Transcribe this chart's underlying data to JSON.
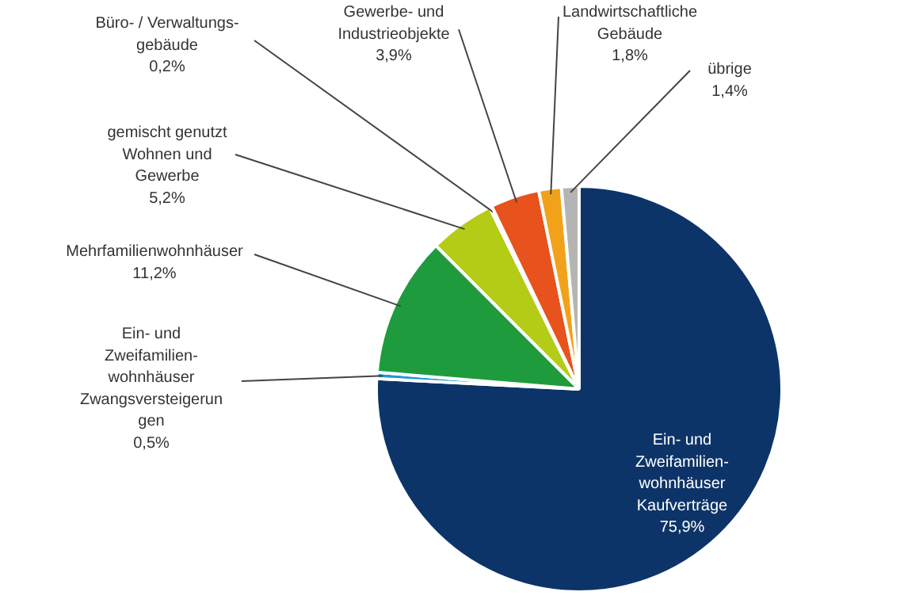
{
  "chart_data": {
    "type": "pie",
    "categories": [
      "Ein- und\nZweifamilien-\nwohnhäuser\nKaufverträge",
      "Ein- und\nZweifamilien-\nwohnhäuser\nZwangsversteigerun\ngen",
      "Mehrfamilienwohnhäuser",
      "gemischt genutzt\nWohnen und\nGewerbe",
      "Büro- / Verwaltungs-\ngebäude",
      "Gewerbe- und\nIndustrieobjekte",
      "Landwirtschaftliche\nGebäude",
      "übrige"
    ],
    "values": [
      75.9,
      0.5,
      11.2,
      5.2,
      0.2,
      3.9,
      1.8,
      1.4
    ],
    "value_labels": [
      "75,9%",
      "0,5%",
      "11,2%",
      "5,2%",
      "0,2%",
      "3,9%",
      "1,8%",
      "1,4%"
    ],
    "colors": [
      "#0d3468",
      "#1a9ad6",
      "#1e9b3c",
      "#b5cc16",
      "#e0303a",
      "#e8521c",
      "#f2a21a",
      "#b4b4b4"
    ]
  }
}
